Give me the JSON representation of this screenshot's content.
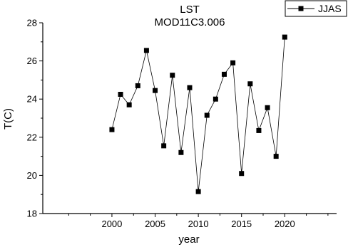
{
  "chart_data": {
    "type": "line",
    "title": "LST",
    "subtitle": "MOD11C3.006",
    "xlabel": "year",
    "ylabel": "T(C)",
    "xlim": [
      1992,
      2026
    ],
    "ylim": [
      18,
      28
    ],
    "x_ticks": [
      2000,
      2005,
      2010,
      2015,
      2020
    ],
    "y_ticks": [
      18,
      20,
      22,
      24,
      26,
      28
    ],
    "grid": false,
    "legend_position": "top-right",
    "series": [
      {
        "name": "JJAS",
        "marker": "square",
        "color": "#000000",
        "x": [
          2000,
          2001,
          2002,
          2003,
          2004,
          2005,
          2006,
          2007,
          2008,
          2009,
          2010,
          2011,
          2012,
          2013,
          2014,
          2015,
          2016,
          2017,
          2018,
          2019,
          2020
        ],
        "y": [
          22.4,
          24.25,
          23.7,
          24.7,
          26.55,
          24.45,
          21.55,
          25.25,
          21.2,
          24.6,
          19.15,
          23.15,
          24.0,
          25.3,
          25.9,
          20.1,
          24.8,
          22.35,
          23.55,
          21.0,
          27.25
        ]
      }
    ]
  }
}
